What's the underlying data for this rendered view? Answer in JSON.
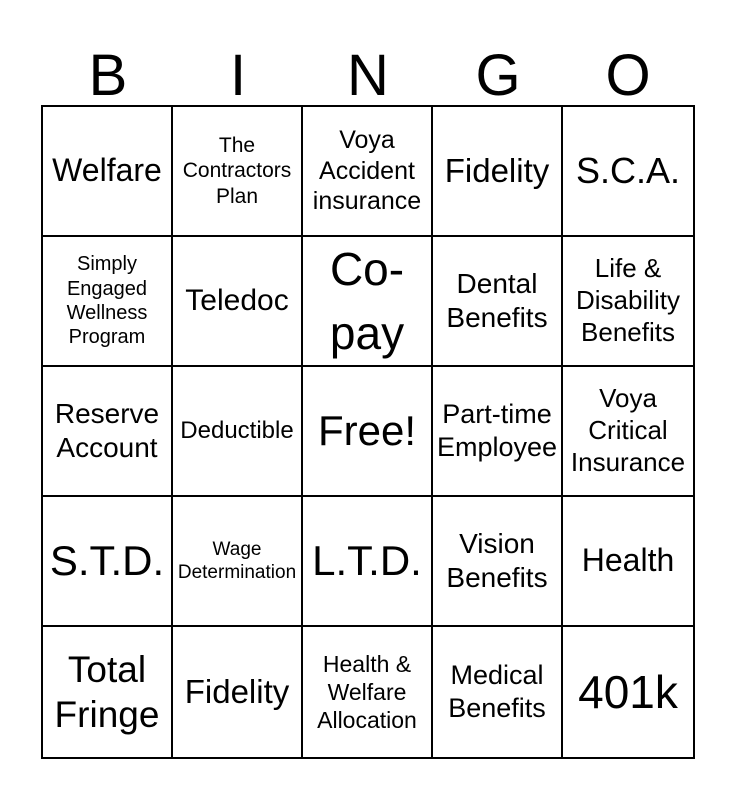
{
  "title": {
    "letters": [
      "B",
      "I",
      "N",
      "G",
      "O"
    ]
  },
  "grid": {
    "rows": [
      [
        "Welfare",
        "The Contractors Plan",
        "Voya Accident insurance",
        "Fidelity",
        "S.C.A."
      ],
      [
        "Simply Engaged Wellness Program",
        "Teledoc",
        "Co-pay",
        "Dental Benefits",
        "Life & Disability Benefits"
      ],
      [
        "Reserve Account",
        "Deductible",
        "Free!",
        "Part-time Employee",
        "Voya Critical Insurance"
      ],
      [
        "S.T.D.",
        "Wage Determination",
        "L.T.D.",
        "Vision Benefits",
        "Health"
      ],
      [
        "Total Fringe",
        "Fidelity",
        "Health & Welfare Allocation",
        "Medical Benefits",
        "401k"
      ]
    ]
  },
  "colors": {
    "background": "#ffffff",
    "grid_border": "#000000",
    "text": "#000000"
  }
}
